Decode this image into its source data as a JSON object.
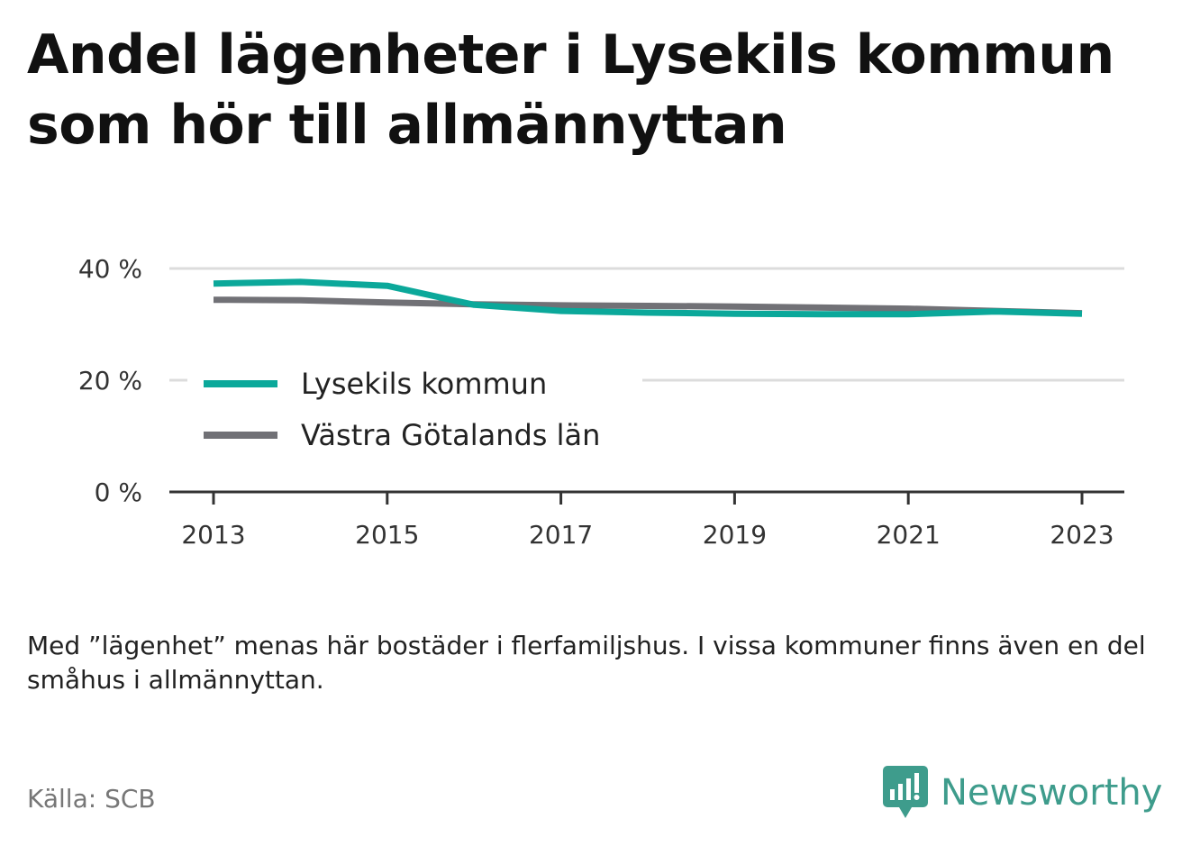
{
  "title": "Andel lägenheter i Lysekils kommun som hör till allmännyttan",
  "note": "Med ”lägenhet” menas här bostäder i flerfamiljshus. I vissa kommuner finns även en del småhus i allmännyttan.",
  "source": "Källa: SCB",
  "brand": {
    "name": "Newsworthy",
    "icon": "newsworthy-logo-icon",
    "color": "#3e9c8c"
  },
  "chart_data": {
    "type": "line",
    "title": "Andel lägenheter i Lysekils kommun som hör till allmännyttan",
    "x": [
      2013,
      2014,
      2015,
      2016,
      2017,
      2018,
      2019,
      2020,
      2021,
      2022,
      2023
    ],
    "x_ticks": [
      "2013",
      "2015",
      "2017",
      "2019",
      "2021",
      "2023"
    ],
    "y_ticks": [
      "0 %",
      "20 %",
      "40 %"
    ],
    "ylim": [
      0,
      40
    ],
    "grid": true,
    "legend_position": "left",
    "series": [
      {
        "name": "Lysekils kommun",
        "color": "#0ba89a",
        "values": [
          37.3,
          37.6,
          36.9,
          33.5,
          32.4,
          32.1,
          31.9,
          31.8,
          31.8,
          32.3,
          31.9
        ]
      },
      {
        "name": "Västra Götalands län",
        "color": "#717176",
        "values": [
          34.4,
          34.3,
          33.9,
          33.6,
          33.4,
          33.3,
          33.2,
          33.0,
          32.8,
          32.4,
          32.0
        ]
      }
    ]
  }
}
